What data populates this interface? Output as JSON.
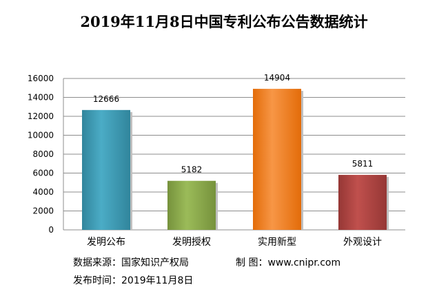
{
  "chart_data": {
    "type": "bar",
    "title": "2019年11月8日中国专利公布公告数据统计",
    "categories": [
      "发明公布",
      "发明授权",
      "实用新型",
      "外观设计"
    ],
    "values": [
      12666,
      5182,
      14904,
      5811
    ],
    "data_labels": [
      "12666",
      "5182",
      "14904",
      "5811"
    ],
    "ylim": [
      0,
      16000
    ],
    "y_ticks": [
      "0",
      "2000",
      "4000",
      "6000",
      "8000",
      "10000",
      "12000",
      "14000",
      "16000"
    ],
    "grid": true,
    "bar_colors": [
      "#31859c",
      "#76923c",
      "#e36c09",
      "#953735"
    ],
    "bar_colors_light": [
      "#4bacc6",
      "#9bbb59",
      "#f79646",
      "#c0504d"
    ],
    "xlabel": "",
    "ylabel": ""
  },
  "footer": {
    "source": "数据来源：国家知识产权局",
    "maker": "制  图：www.cnipr.com",
    "publish_date": "发布时间：2019年11月8日"
  }
}
